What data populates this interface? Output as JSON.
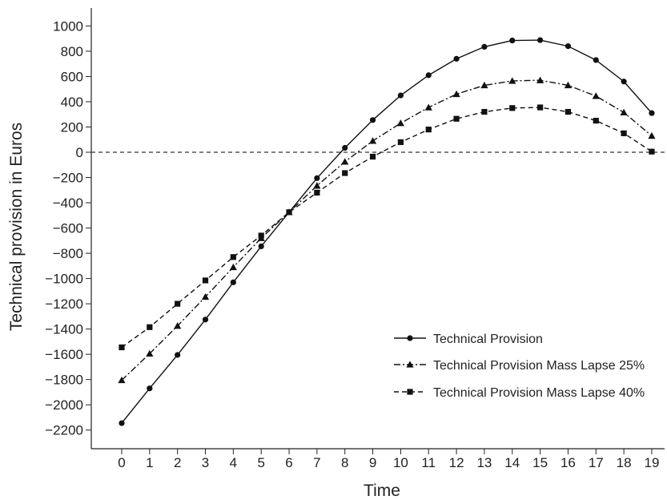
{
  "chart_data": {
    "type": "line",
    "title": "",
    "xlabel": "Time",
    "ylabel": "Technical provision in Euros",
    "xlim": [
      -1,
      19
    ],
    "ylim": [
      -2300,
      1100
    ],
    "x_ticks": [
      0,
      1,
      2,
      3,
      4,
      5,
      6,
      7,
      8,
      9,
      10,
      11,
      12,
      13,
      14,
      15,
      16,
      17,
      18,
      19
    ],
    "x_tick_labels": [
      "0",
      "1",
      "2",
      "3",
      "4",
      "5",
      "6",
      "7",
      "8",
      "9",
      "10",
      "11",
      "12",
      "13",
      "14",
      "15",
      "16",
      "17",
      "18",
      "19"
    ],
    "y_ticks": [
      1000,
      800,
      600,
      400,
      200,
      0,
      -200,
      -400,
      -600,
      -800,
      -1000,
      -1200,
      -1400,
      -1600,
      -1800,
      -2000,
      -2200
    ],
    "y_tick_labels": [
      "1000",
      "800",
      "600",
      "400",
      "200",
      "0",
      "−200",
      "−400",
      "−600",
      "−800",
      "−1000",
      "−1200",
      "−1400",
      "−1600",
      "−1800",
      "−2000",
      "−2200"
    ],
    "reference_line": {
      "y": 0,
      "style": "dashed"
    },
    "grid": false,
    "legend_position": "lower-right",
    "x": [
      0,
      1,
      2,
      3,
      4,
      5,
      6,
      7,
      8,
      9,
      10,
      11,
      12,
      13,
      14,
      15,
      16,
      17,
      18,
      19
    ],
    "series": [
      {
        "name": "Technical Provision",
        "marker": "circle",
        "dash": "solid",
        "values": [
          -2145,
          -1870,
          -1605,
          -1325,
          -1030,
          -745,
          -475,
          -205,
          35,
          255,
          450,
          610,
          740,
          835,
          885,
          888,
          840,
          730,
          560,
          310
        ]
      },
      {
        "name": "Technical Provision Mass Lapse 25%",
        "marker": "triangle",
        "dash": "dash-dot",
        "values": [
          -1805,
          -1595,
          -1375,
          -1145,
          -910,
          -680,
          -475,
          -265,
          -75,
          90,
          230,
          355,
          460,
          530,
          565,
          570,
          530,
          445,
          315,
          130
        ]
      },
      {
        "name": "Technical Provision Mass Lapse 40%",
        "marker": "square",
        "dash": "dashed",
        "values": [
          -1545,
          -1385,
          -1200,
          -1015,
          -830,
          -660,
          -475,
          -320,
          -165,
          -35,
          80,
          180,
          265,
          320,
          350,
          355,
          320,
          250,
          150,
          5
        ]
      }
    ]
  }
}
